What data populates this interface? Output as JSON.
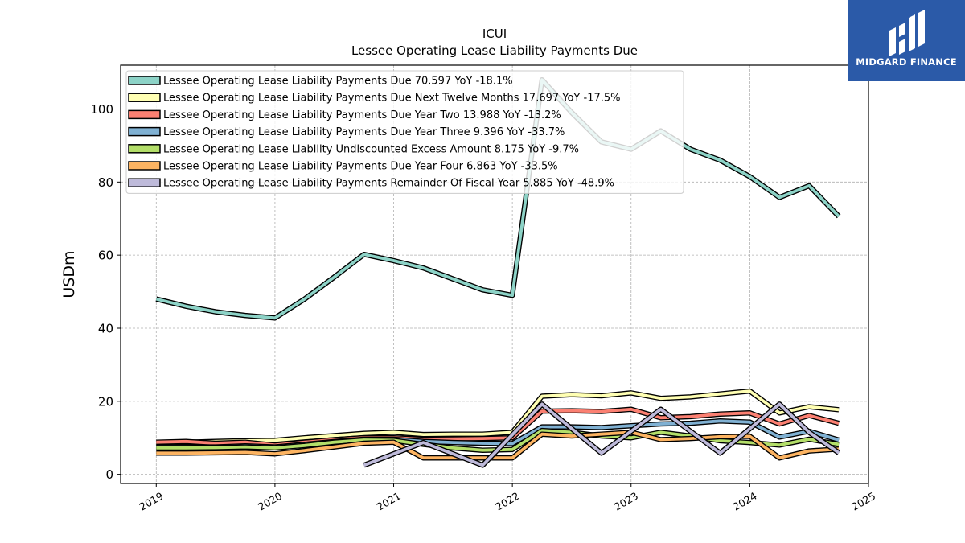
{
  "logo": {
    "text": "MIDGARD FINANCE",
    "bg": "#2b5aa8"
  },
  "chart_data": {
    "type": "line",
    "title": "ICUI",
    "subtitle": "Lessee Operating Lease Liability Payments Due",
    "ylabel": "USDm",
    "xlabel": "",
    "xlim": [
      2018.7,
      2025.0
    ],
    "ylim": [
      -2.5,
      112
    ],
    "xticks": [
      2019,
      2020,
      2021,
      2022,
      2023,
      2024,
      2025
    ],
    "xtick_labels": [
      "2019",
      "2020",
      "2021",
      "2022",
      "2023",
      "2024",
      "2025"
    ],
    "yticks": [
      0,
      20,
      40,
      60,
      80,
      100
    ],
    "ytick_labels": [
      "0",
      "20",
      "40",
      "60",
      "80",
      "100"
    ],
    "grid": true,
    "legend_position": "top-left",
    "series": [
      {
        "name": "Lessee Operating Lease Liability Payments Due  70.597 YoY -18.1%",
        "color": "#8dd3c7",
        "x": [
          2019.0,
          2019.25,
          2019.5,
          2019.75,
          2020.0,
          2020.25,
          2020.5,
          2020.75,
          2021.0,
          2021.25,
          2021.5,
          2021.75,
          2022.0,
          2022.25,
          2022.5,
          2022.75,
          2023.0,
          2023.25,
          2023.5,
          2023.75,
          2024.0,
          2024.25,
          2024.5,
          2024.75
        ],
        "y": [
          48,
          46,
          44.5,
          43.5,
          42.8,
          48,
          54,
          60.2,
          58.5,
          56.5,
          53.5,
          50.5,
          49,
          108,
          99,
          91,
          89,
          94,
          89,
          86,
          81.5,
          75.8,
          79,
          70.6
        ]
      },
      {
        "name": "Lessee Operating Lease Liability Payments Due Next Twelve Months  17.697 YoY -17.5%",
        "color": "#ffffb3",
        "x": [
          2019.0,
          2019.25,
          2019.5,
          2019.75,
          2020.0,
          2020.25,
          2020.5,
          2020.75,
          2021.0,
          2021.25,
          2021.5,
          2021.75,
          2022.0,
          2022.25,
          2022.5,
          2022.75,
          2023.0,
          2023.25,
          2023.5,
          2023.75,
          2024.0,
          2024.25,
          2024.5,
          2024.75
        ],
        "y": [
          8.5,
          8.8,
          9.0,
          9.2,
          9.3,
          10.0,
          10.6,
          11.2,
          11.5,
          10.9,
          11.0,
          11.0,
          11.5,
          21.4,
          21.8,
          21.5,
          22.3,
          20.8,
          21.2,
          22.0,
          22.8,
          16.8,
          18.5,
          17.7
        ]
      },
      {
        "name": "Lessee Operating Lease Liability Payments Due Year Two  13.988 YoY -13.2%",
        "color": "#fb8072",
        "x": [
          2019.0,
          2019.25,
          2019.5,
          2019.75,
          2020.0,
          2020.25,
          2020.5,
          2020.75,
          2021.0,
          2021.25,
          2021.5,
          2021.75,
          2022.0,
          2022.25,
          2022.5,
          2022.75,
          2023.0,
          2023.25,
          2023.5,
          2023.75,
          2024.0,
          2024.25,
          2024.5,
          2024.75
        ],
        "y": [
          8.8,
          9.0,
          8.5,
          8.8,
          8.0,
          8.8,
          9.5,
          10.0,
          10.0,
          9.6,
          9.7,
          9.8,
          10.0,
          17.3,
          17.4,
          17.2,
          17.8,
          15.5,
          15.8,
          16.5,
          16.8,
          13.8,
          16.1,
          14.0
        ]
      },
      {
        "name": "Lessee Operating Lease Liability Payments Due Year Three  9.396 YoY -33.7%",
        "color": "#80b1d3",
        "x": [
          2019.0,
          2019.25,
          2019.5,
          2019.75,
          2020.0,
          2020.25,
          2020.5,
          2020.75,
          2021.0,
          2021.25,
          2021.5,
          2021.75,
          2022.0,
          2022.25,
          2022.5,
          2022.75,
          2023.0,
          2023.25,
          2023.5,
          2023.75,
          2024.0,
          2024.25,
          2024.5,
          2024.75
        ],
        "y": [
          7.5,
          7.5,
          7.5,
          7.8,
          7.5,
          8.2,
          9.0,
          9.6,
          9.6,
          9.0,
          8.7,
          8.5,
          8.4,
          13.0,
          13.0,
          12.8,
          13.3,
          13.8,
          14.0,
          14.6,
          14.3,
          10.2,
          11.8,
          9.4
        ]
      },
      {
        "name": "Lessee Operating Lease Liability Undiscounted Excess Amount  8.175 YoY -9.7%",
        "color": "#b3de69",
        "x": [
          2019.0,
          2019.25,
          2019.5,
          2019.75,
          2020.0,
          2020.25,
          2020.5,
          2020.75,
          2021.0,
          2021.25,
          2021.5,
          2021.75,
          2022.0,
          2022.25,
          2022.5,
          2022.75,
          2023.0,
          2023.25,
          2023.5,
          2023.75,
          2024.0,
          2024.25,
          2024.5,
          2024.75
        ],
        "y": [
          7.2,
          7.2,
          7.3,
          7.5,
          7.2,
          7.9,
          8.8,
          9.4,
          9.3,
          8.2,
          7.2,
          6.6,
          6.8,
          12.0,
          11.5,
          10.5,
          10.0,
          11.5,
          10.5,
          9.2,
          8.7,
          8.0,
          9.6,
          8.2
        ]
      },
      {
        "name": "Lessee Operating Lease Liability Payments Due Year Four  6.863 YoY -33.5%",
        "color": "#fdb462",
        "x": [
          2019.0,
          2019.25,
          2019.5,
          2019.75,
          2020.0,
          2020.25,
          2020.5,
          2020.75,
          2021.0,
          2021.25,
          2021.5,
          2021.75,
          2022.0,
          2022.25,
          2022.5,
          2022.75,
          2023.0,
          2023.25,
          2023.5,
          2023.75,
          2024.0,
          2024.25,
          2024.5,
          2024.75
        ],
        "y": [
          5.8,
          5.8,
          5.9,
          6.0,
          5.6,
          6.5,
          7.5,
          8.5,
          8.8,
          4.5,
          4.5,
          4.5,
          4.5,
          11.0,
          10.5,
          11.0,
          11.5,
          9.5,
          9.8,
          10.3,
          10.4,
          4.5,
          6.4,
          6.9
        ]
      },
      {
        "name": "Lessee Operating Lease Liability Payments Remainder Of Fiscal Year  5.885 YoY -48.9%",
        "color": "#bebada",
        "x": [
          2020.75,
          2021.25,
          2021.75,
          2022.25,
          2022.75,
          2023.25,
          2023.75,
          2024.25,
          2024.5,
          2024.75
        ],
        "y": [
          2.5,
          8.7,
          2.5,
          19.2,
          5.8,
          17.8,
          5.8,
          19.2,
          11.5,
          5.9
        ]
      }
    ]
  }
}
